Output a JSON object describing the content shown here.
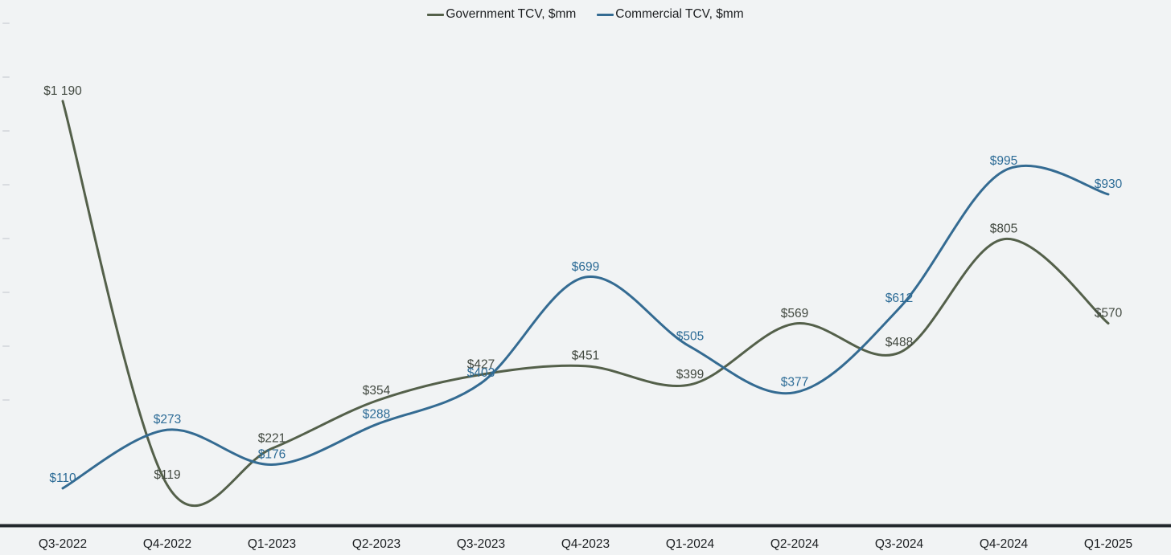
{
  "chart_data": {
    "type": "line",
    "title": "",
    "categories": [
      "Q3-2022",
      "Q4-2022",
      "Q1-2023",
      "Q2-2023",
      "Q3-2023",
      "Q4-2023",
      "Q1-2024",
      "Q2-2024",
      "Q3-2024",
      "Q4-2024",
      "Q1-2025"
    ],
    "series": [
      {
        "name": "Government TCV, $mm",
        "color": "#54604a",
        "label_color": "#424940",
        "values": [
          1190,
          119,
          221,
          354,
          427,
          451,
          399,
          569,
          488,
          805,
          570
        ],
        "data_labels": [
          "$1 190",
          "$119",
          "$221",
          "$354",
          "$427",
          "$451",
          "$399",
          "$569",
          "$488",
          "$805",
          "$570"
        ]
      },
      {
        "name": "Commercial TCV, $mm",
        "color": "#346b92",
        "label_color": "#2c6b96",
        "values": [
          110,
          273,
          176,
          288,
          403,
          699,
          505,
          377,
          612,
          995,
          930
        ],
        "data_labels": [
          "$110",
          "$273",
          "$176",
          "$288",
          "$403",
          "$699",
          "$505",
          "$377",
          "$612",
          "$995",
          "$930"
        ]
      }
    ],
    "ylim": [
      0,
      1472
    ],
    "grid": false,
    "smooth": true,
    "legend_position": "top-center",
    "data_labels_visible": true,
    "y_axis": {
      "labels_visible": false,
      "ticks_visible": true
    },
    "colors": {
      "background": "#f1f3f4",
      "axis_line": "#22272c",
      "tick_mark": "#d9dce0",
      "x_label_text": "#1b1e21",
      "legend_text": "#1d1f21"
    }
  }
}
